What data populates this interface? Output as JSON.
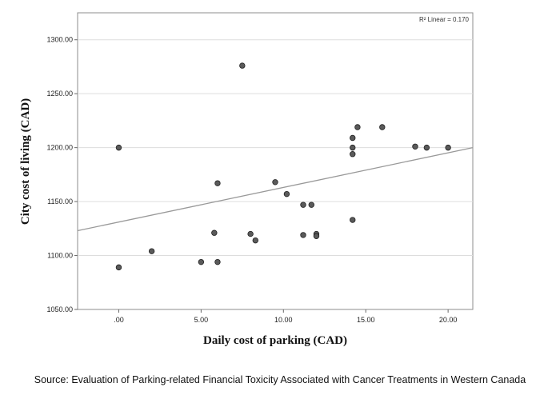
{
  "chart_data": {
    "type": "scatter",
    "xlabel": "Daily cost of parking (CAD)",
    "ylabel": "City cost of living (CAD)",
    "xlim": [
      -2.5,
      21.5
    ],
    "ylim": [
      1050,
      1325
    ],
    "x_ticks": [
      0,
      5,
      10,
      15,
      20
    ],
    "x_tick_labels": [
      ".00",
      "5.00",
      "10.00",
      "15.00",
      "20.00"
    ],
    "y_ticks": [
      1050,
      1100,
      1150,
      1200,
      1250,
      1300
    ],
    "y_tick_labels": [
      "1050.00",
      "1100.00",
      "1150.00",
      "1200.00",
      "1250.00",
      "1300.00"
    ],
    "grid": "horizontal",
    "points": [
      {
        "x": 0,
        "y": 1200
      },
      {
        "x": 0,
        "y": 1089
      },
      {
        "x": 2,
        "y": 1104
      },
      {
        "x": 5,
        "y": 1094
      },
      {
        "x": 5.8,
        "y": 1121
      },
      {
        "x": 6,
        "y": 1094
      },
      {
        "x": 6,
        "y": 1167
      },
      {
        "x": 7.5,
        "y": 1276
      },
      {
        "x": 8,
        "y": 1120
      },
      {
        "x": 8.3,
        "y": 1114
      },
      {
        "x": 9.5,
        "y": 1168
      },
      {
        "x": 10.2,
        "y": 1157
      },
      {
        "x": 11.2,
        "y": 1147
      },
      {
        "x": 11.2,
        "y": 1119
      },
      {
        "x": 11.7,
        "y": 1147
      },
      {
        "x": 12,
        "y": 1120
      },
      {
        "x": 12,
        "y": 1118
      },
      {
        "x": 14.2,
        "y": 1209
      },
      {
        "x": 14.2,
        "y": 1200
      },
      {
        "x": 14.2,
        "y": 1194
      },
      {
        "x": 14.2,
        "y": 1133
      },
      {
        "x": 14.5,
        "y": 1219
      },
      {
        "x": 16,
        "y": 1219
      },
      {
        "x": 18,
        "y": 1201
      },
      {
        "x": 18.7,
        "y": 1200
      },
      {
        "x": 20,
        "y": 1200
      }
    ],
    "fit_line": {
      "type": "linear",
      "y_at_xmin": 1123,
      "y_at_xmax": 1200,
      "label": "R² Linear = 0.170"
    }
  },
  "source_text": "Source: Evaluation of Parking-related Financial Toxicity Associated with Cancer Treatments in Western Canada",
  "colors": {
    "point_fill": "#5a5a5a",
    "point_stroke": "#222222",
    "fit_line": "#999999",
    "grid": "#dddddd"
  }
}
